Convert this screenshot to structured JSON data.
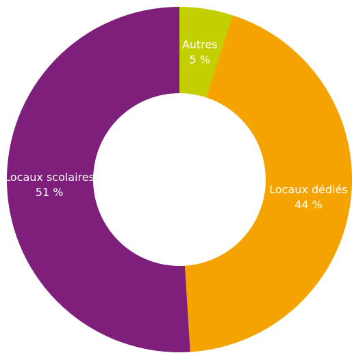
{
  "chart_data": {
    "type": "pie",
    "variant": "donut",
    "title": "",
    "legend": "none",
    "slices": [
      {
        "label": "Autres",
        "value": 5,
        "display": "5 %",
        "color": "#c3cf00"
      },
      {
        "label": "Locaux dédiés",
        "value": 44,
        "display": "44 %",
        "color": "#f5a300"
      },
      {
        "label": "Locaux scolaires",
        "value": 51,
        "display": "51 %",
        "color": "#7f1f7c"
      }
    ]
  }
}
